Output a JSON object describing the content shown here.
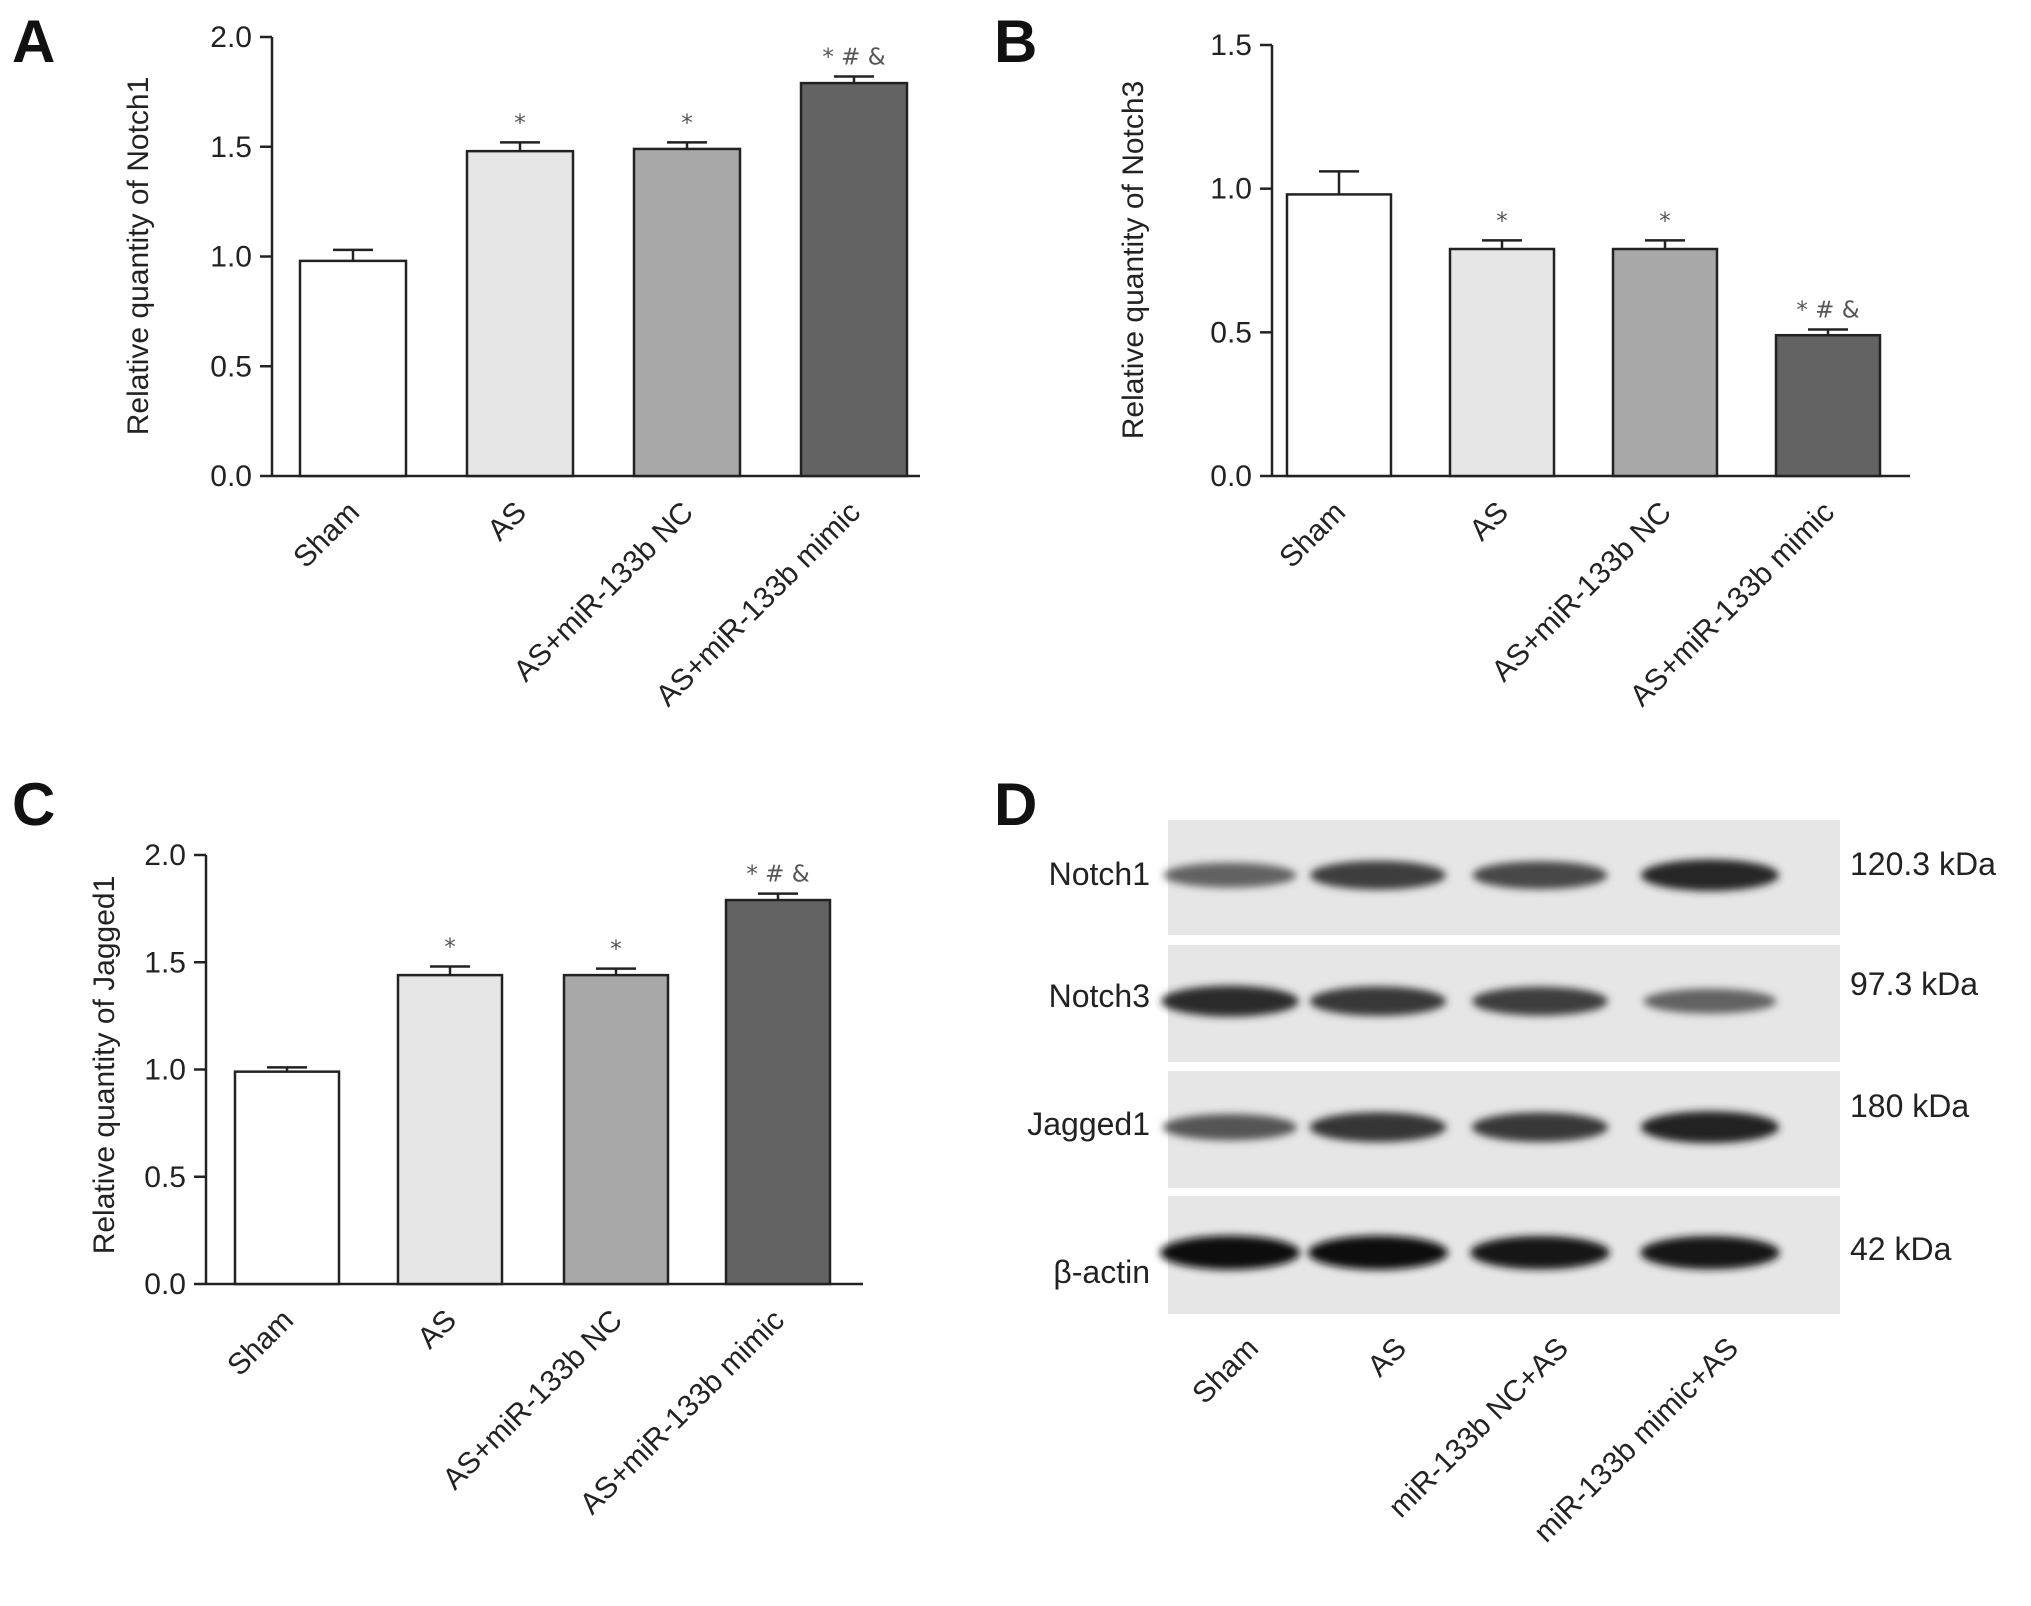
{
  "charts": [
    {
      "panel": "A",
      "chart_data": {
        "type": "bar",
        "title": "",
        "xlabel": "",
        "ylabel": "Relative quantity of Notch1",
        "categories": [
          "Sham",
          "AS",
          "AS+miR-133b NC",
          "AS+miR-133b mimic"
        ],
        "values": [
          0.98,
          1.48,
          1.49,
          1.79
        ],
        "errors": [
          0.05,
          0.04,
          0.03,
          0.03
        ],
        "annotations": [
          "",
          "*",
          "*",
          "* # &"
        ],
        "ylim": [
          0,
          2.0
        ],
        "yticks": [
          "0.0",
          "0.5",
          "1.0",
          "1.5",
          "2.0"
        ],
        "colors": [
          "#ffffff",
          "#e6e6e6",
          "#a8a8a8",
          "#636363"
        ],
        "grid": false
      }
    },
    {
      "panel": "B",
      "chart_data": {
        "type": "bar",
        "title": "",
        "xlabel": "",
        "ylabel": "Relative quantity of Notch3",
        "categories": [
          "Sham",
          "AS",
          "AS+miR-133b NC",
          "AS+miR-133b mimic"
        ],
        "values": [
          0.98,
          0.79,
          0.79,
          0.49
        ],
        "errors": [
          0.08,
          0.03,
          0.03,
          0.02
        ],
        "annotations": [
          "",
          "*",
          "*",
          "* # &"
        ],
        "ylim": [
          0,
          1.5
        ],
        "yticks": [
          "0.0",
          "0.5",
          "1.0",
          "1.5"
        ],
        "colors": [
          "#ffffff",
          "#e6e6e6",
          "#a8a8a8",
          "#636363"
        ],
        "grid": false
      }
    },
    {
      "panel": "C",
      "chart_data": {
        "type": "bar",
        "title": "",
        "xlabel": "",
        "ylabel": "Relative quantity of Jagged1",
        "categories": [
          "Sham",
          "AS",
          "AS+miR-133b NC",
          "AS+miR-133b mimic"
        ],
        "values": [
          0.99,
          1.44,
          1.44,
          1.79
        ],
        "errors": [
          0.02,
          0.04,
          0.03,
          0.03
        ],
        "annotations": [
          "",
          "*",
          "*",
          "* # &"
        ],
        "ylim": [
          0,
          2.0
        ],
        "yticks": [
          "0.0",
          "0.5",
          "1.0",
          "1.5",
          "2.0"
        ],
        "colors": [
          "#ffffff",
          "#e6e6e6",
          "#a8a8a8",
          "#636363"
        ],
        "grid": false
      }
    }
  ],
  "blot": {
    "panel": "D",
    "rows": [
      {
        "protein": "Notch1",
        "size": "120.3  kDa",
        "intensity": [
          0.55,
          0.75,
          0.7,
          0.88
        ]
      },
      {
        "protein": "Notch3",
        "size": "97.3  kDa",
        "intensity": [
          0.85,
          0.78,
          0.75,
          0.55
        ]
      },
      {
        "protein": "Jagged1",
        "size": "180  kDa",
        "intensity": [
          0.62,
          0.8,
          0.78,
          0.9
        ]
      },
      {
        "protein": "β-actin",
        "size": "42  kDa",
        "intensity": [
          1.0,
          1.0,
          0.97,
          0.97
        ]
      }
    ],
    "lanes": [
      "Sham",
      "AS",
      "miR-133b NC+AS",
      "miR-133b mimic+AS"
    ]
  }
}
